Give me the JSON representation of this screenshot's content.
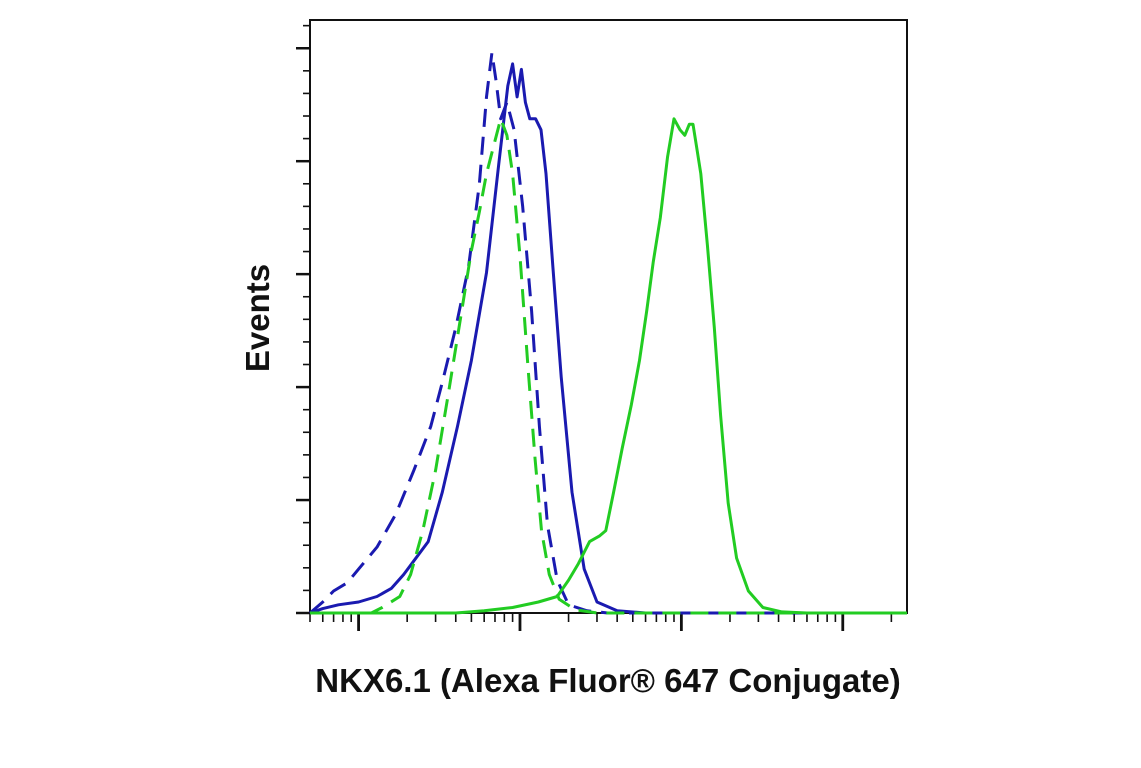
{
  "chart_data": {
    "type": "line",
    "title": "",
    "xlabel": "NKX6.1 (Alexa Fluor® 647 Conjugate)",
    "ylabel": "Events",
    "x_scale": "log",
    "x_range": [
      0.5,
      2500
    ],
    "y_range": [
      0,
      1.08
    ],
    "tick_labels_visible": false,
    "grid": false,
    "legend": "none",
    "series": [
      {
        "color": "#1a1ab0",
        "dash": true,
        "points": [
          [
            0.5,
            0
          ],
          [
            0.6,
            0.02
          ],
          [
            0.7,
            0.04
          ],
          [
            0.85,
            0.055
          ],
          [
            1.0,
            0.08
          ],
          [
            1.3,
            0.12
          ],
          [
            1.7,
            0.18
          ],
          [
            2.2,
            0.26
          ],
          [
            2.8,
            0.34
          ],
          [
            3.3,
            0.42
          ],
          [
            4.0,
            0.52
          ],
          [
            4.8,
            0.63
          ],
          [
            5.6,
            0.78
          ],
          [
            6.2,
            0.94
          ],
          [
            6.7,
            1.02
          ],
          [
            7.1,
            0.97
          ],
          [
            7.6,
            0.9
          ],
          [
            8.3,
            0.93
          ],
          [
            9.2,
            0.88
          ],
          [
            10.4,
            0.74
          ],
          [
            11.8,
            0.55
          ],
          [
            13.2,
            0.34
          ],
          [
            14.8,
            0.16
          ],
          [
            17,
            0.06
          ],
          [
            20,
            0.015
          ],
          [
            26,
            0.004
          ],
          [
            35,
            0
          ],
          [
            2500,
            0
          ]
        ]
      },
      {
        "color": "#1a1ab0",
        "dash": false,
        "points": [
          [
            0.5,
            0
          ],
          [
            0.6,
            0.008
          ],
          [
            0.75,
            0.015
          ],
          [
            1.0,
            0.02
          ],
          [
            1.3,
            0.03
          ],
          [
            1.6,
            0.045
          ],
          [
            1.9,
            0.07
          ],
          [
            2.2,
            0.095
          ],
          [
            2.7,
            0.13
          ],
          [
            3.3,
            0.22
          ],
          [
            4.1,
            0.34
          ],
          [
            5.0,
            0.46
          ],
          [
            6.2,
            0.62
          ],
          [
            7.4,
            0.82
          ],
          [
            8.4,
            0.96
          ],
          [
            9.0,
            1.0
          ],
          [
            9.6,
            0.94
          ],
          [
            10.2,
            0.99
          ],
          [
            10.8,
            0.93
          ],
          [
            11.5,
            0.9
          ],
          [
            12.5,
            0.9
          ],
          [
            13.5,
            0.88
          ],
          [
            14.5,
            0.8
          ],
          [
            16,
            0.63
          ],
          [
            18,
            0.43
          ],
          [
            21,
            0.22
          ],
          [
            25,
            0.08
          ],
          [
            30,
            0.02
          ],
          [
            40,
            0.004
          ],
          [
            60,
            0
          ],
          [
            2500,
            0
          ]
        ]
      },
      {
        "color": "#22cc22",
        "dash": true,
        "points": [
          [
            0.5,
            0
          ],
          [
            1.2,
            0
          ],
          [
            1.4,
            0.01
          ],
          [
            1.8,
            0.03
          ],
          [
            2.1,
            0.07
          ],
          [
            2.5,
            0.15
          ],
          [
            3.0,
            0.26
          ],
          [
            3.6,
            0.4
          ],
          [
            4.3,
            0.54
          ],
          [
            5.0,
            0.66
          ],
          [
            5.6,
            0.73
          ],
          [
            6.2,
            0.8
          ],
          [
            7.0,
            0.86
          ],
          [
            7.6,
            0.9
          ],
          [
            8.3,
            0.87
          ],
          [
            9.0,
            0.8
          ],
          [
            10.0,
            0.65
          ],
          [
            11.2,
            0.45
          ],
          [
            12.4,
            0.28
          ],
          [
            13.6,
            0.15
          ],
          [
            15.2,
            0.07
          ],
          [
            17.5,
            0.025
          ],
          [
            22,
            0.006
          ],
          [
            30,
            0
          ],
          [
            2500,
            0
          ]
        ]
      },
      {
        "color": "#22cc22",
        "dash": false,
        "points": [
          [
            0.5,
            0
          ],
          [
            4,
            0
          ],
          [
            6,
            0.004
          ],
          [
            9,
            0.01
          ],
          [
            13,
            0.02
          ],
          [
            17,
            0.03
          ],
          [
            20,
            0.06
          ],
          [
            23,
            0.09
          ],
          [
            27,
            0.13
          ],
          [
            31,
            0.14
          ],
          [
            34,
            0.15
          ],
          [
            38,
            0.22
          ],
          [
            43,
            0.3
          ],
          [
            49,
            0.38
          ],
          [
            55,
            0.46
          ],
          [
            61,
            0.55
          ],
          [
            67,
            0.64
          ],
          [
            74,
            0.72
          ],
          [
            82,
            0.83
          ],
          [
            90,
            0.9
          ],
          [
            98,
            0.88
          ],
          [
            105,
            0.87
          ],
          [
            112,
            0.89
          ],
          [
            118,
            0.89
          ],
          [
            124,
            0.85
          ],
          [
            132,
            0.8
          ],
          [
            145,
            0.67
          ],
          [
            160,
            0.52
          ],
          [
            175,
            0.36
          ],
          [
            195,
            0.2
          ],
          [
            220,
            0.1
          ],
          [
            260,
            0.04
          ],
          [
            320,
            0.01
          ],
          [
            420,
            0.002
          ],
          [
            600,
            0
          ],
          [
            2500,
            0
          ]
        ]
      }
    ]
  }
}
